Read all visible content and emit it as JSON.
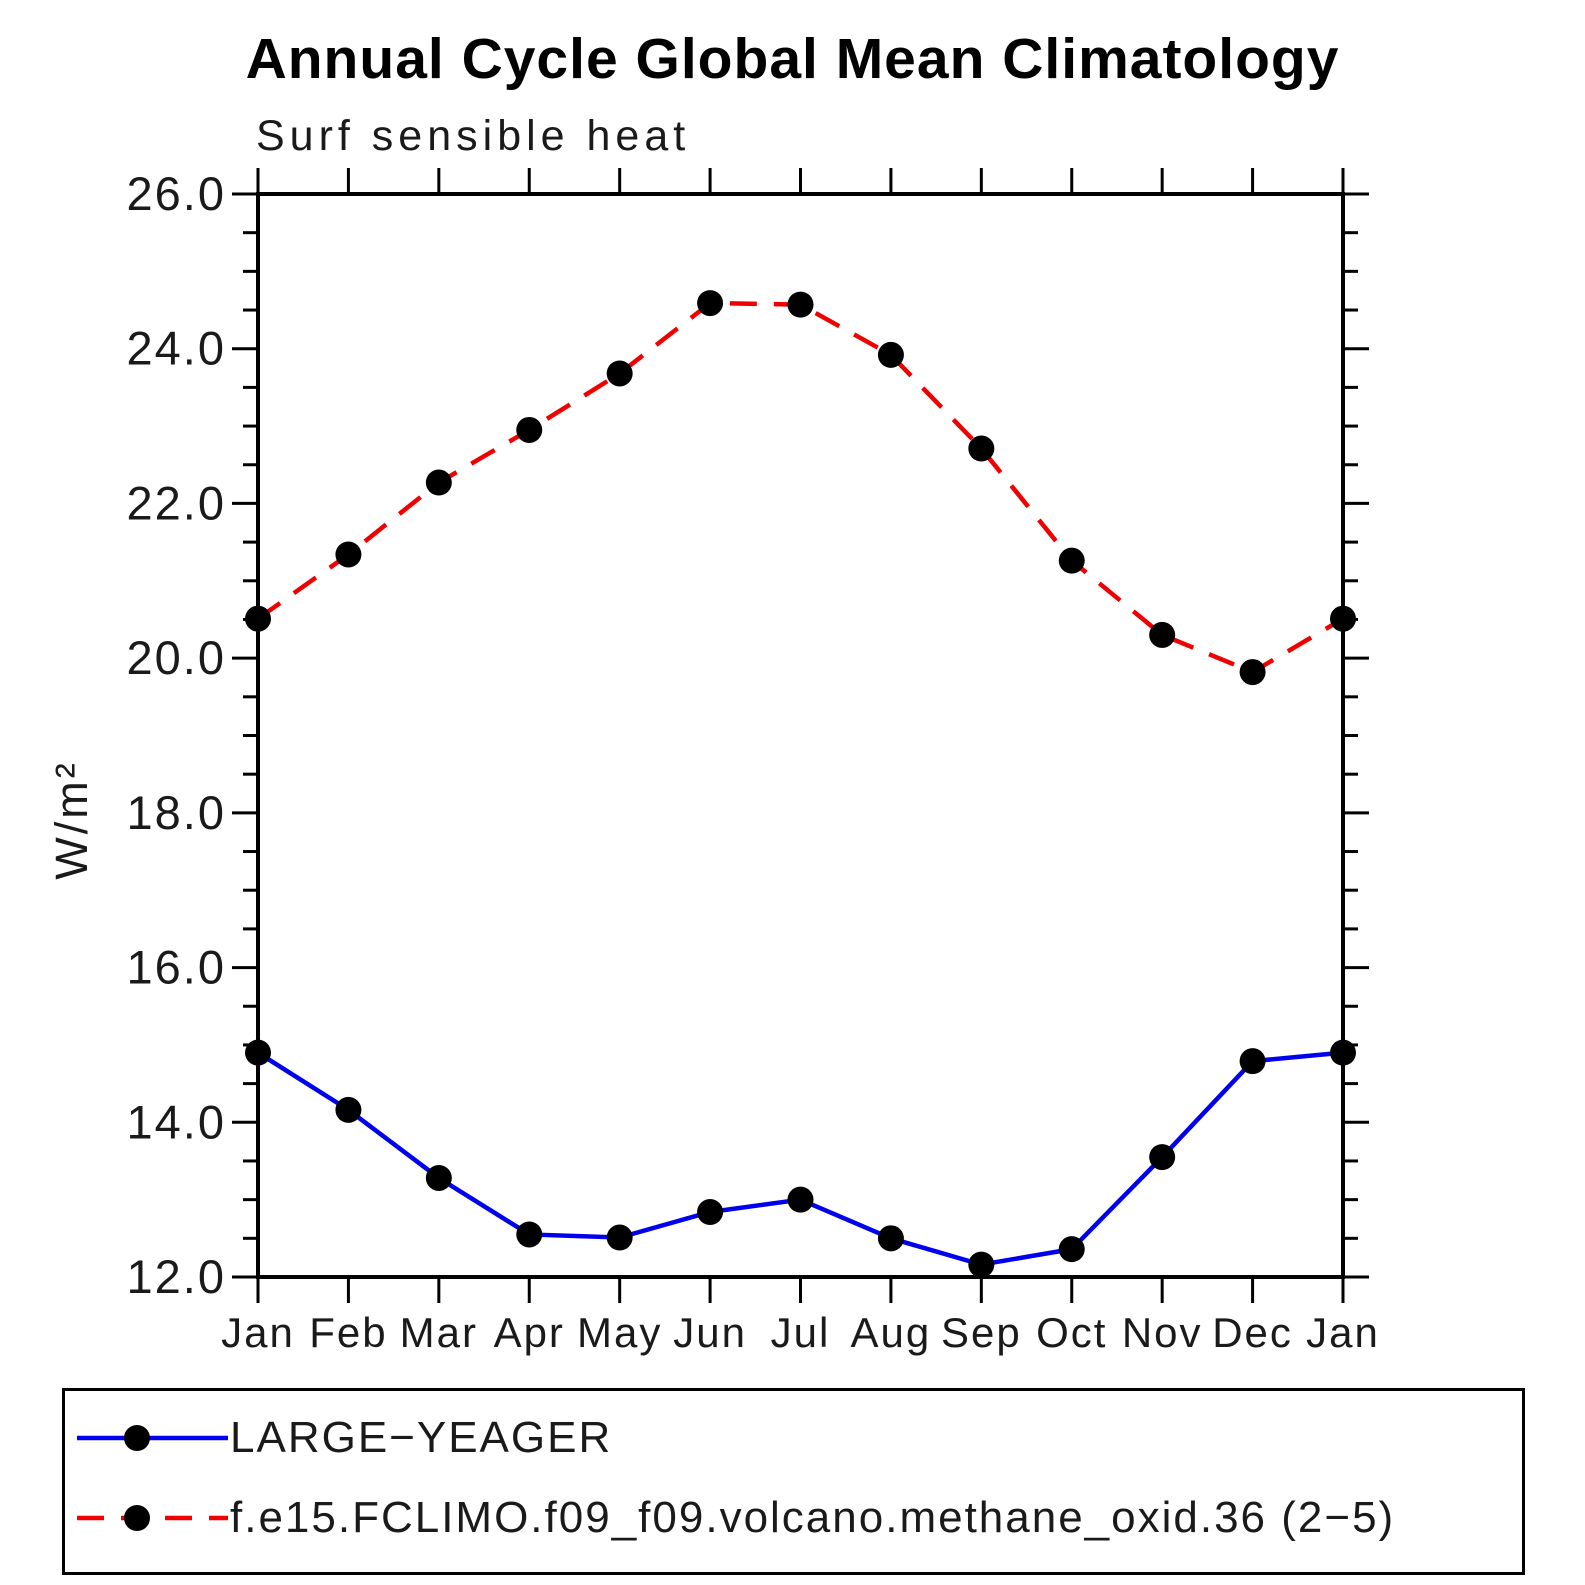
{
  "chart_data": {
    "type": "line",
    "title": "Annual Cycle Global Mean Climatology",
    "subtitle": "Surf sensible heat",
    "ylabel": "W/m²",
    "categories": [
      "Jan",
      "Feb",
      "Mar",
      "Apr",
      "May",
      "Jun",
      "Jul",
      "Aug",
      "Sep",
      "Oct",
      "Nov",
      "Dec",
      "Jan"
    ],
    "ylim": [
      12.0,
      26.0
    ],
    "y_major_step": 2.0,
    "y_minor_step": 0.5,
    "y_tick_labels": [
      "12.0",
      "14.0",
      "16.0",
      "18.0",
      "20.0",
      "22.0",
      "24.0",
      "26.0"
    ],
    "grid": false,
    "legend_position": "bottom",
    "axis_color": "#000000",
    "marker_color": "#000000",
    "series": [
      {
        "name": "LARGE−YEAGER",
        "color": "#0000ee",
        "style": "solid",
        "marker": "circle",
        "values": [
          14.9,
          14.16,
          13.28,
          12.55,
          12.51,
          12.84,
          13.0,
          12.5,
          12.16,
          12.36,
          13.55,
          14.79,
          14.9
        ]
      },
      {
        "name": "f.e15.FCLIMO.f09_f09.volcano.methane_oxid.36 (2−5)",
        "color": "#f00000",
        "style": "dashed",
        "marker": "circle",
        "values": [
          20.51,
          21.34,
          22.27,
          22.95,
          23.68,
          24.59,
          24.57,
          23.92,
          22.71,
          21.26,
          20.3,
          19.82,
          20.51
        ]
      }
    ]
  }
}
